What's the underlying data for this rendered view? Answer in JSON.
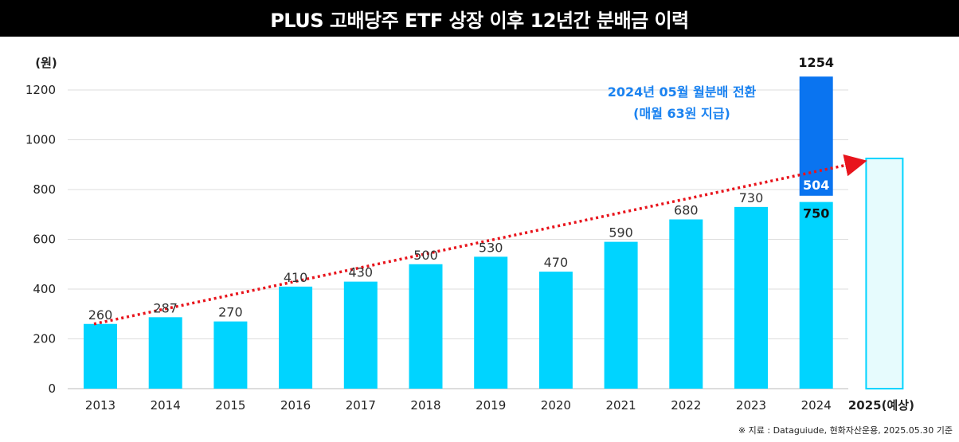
{
  "chart_data": {
    "type": "bar",
    "title": "PLUS 고배당주 ETF 상장 이후 12년간 분배금 이력",
    "ylabel": "(원)",
    "xlabel": "",
    "ylim": [
      0,
      1300
    ],
    "yticks": [
      0,
      200,
      400,
      600,
      800,
      1000,
      1200
    ],
    "grid": true,
    "categories": [
      "2013",
      "2014",
      "2015",
      "2016",
      "2017",
      "2018",
      "2019",
      "2020",
      "2021",
      "2022",
      "2023",
      "2024",
      "2025(예상)"
    ],
    "values": [
      260,
      287,
      270,
      410,
      430,
      500,
      530,
      470,
      590,
      680,
      730,
      750,
      null
    ],
    "value_labels": [
      "260",
      "287",
      "270",
      "410",
      "430",
      "500",
      "530",
      "470",
      "590",
      "680",
      "730",
      "750",
      ""
    ],
    "stacked_2024": {
      "base": 750,
      "extra": 504,
      "extra_label": "504",
      "total_label": "1254"
    },
    "forecast_2025": {
      "value": 925
    },
    "trend_line": {
      "from": [
        "2013",
        260
      ],
      "to": [
        "2025(예상)",
        925
      ]
    },
    "annotation": {
      "line1": "2024년 05월 월분배 전환",
      "line2": "(매월 63원 지급)"
    },
    "colors": {
      "bar": "#00d4ff",
      "extra": "#0a74f0",
      "forecast_fill": "#e6fbfd",
      "forecast_stroke": "#00d4ff",
      "trend": "#e8141c",
      "annotation": "#1a82f0",
      "grid": "#dddddd"
    }
  },
  "footnote": "※ 지료 : Dataguiude, 현화자산운용, 2025.05.30 기준"
}
